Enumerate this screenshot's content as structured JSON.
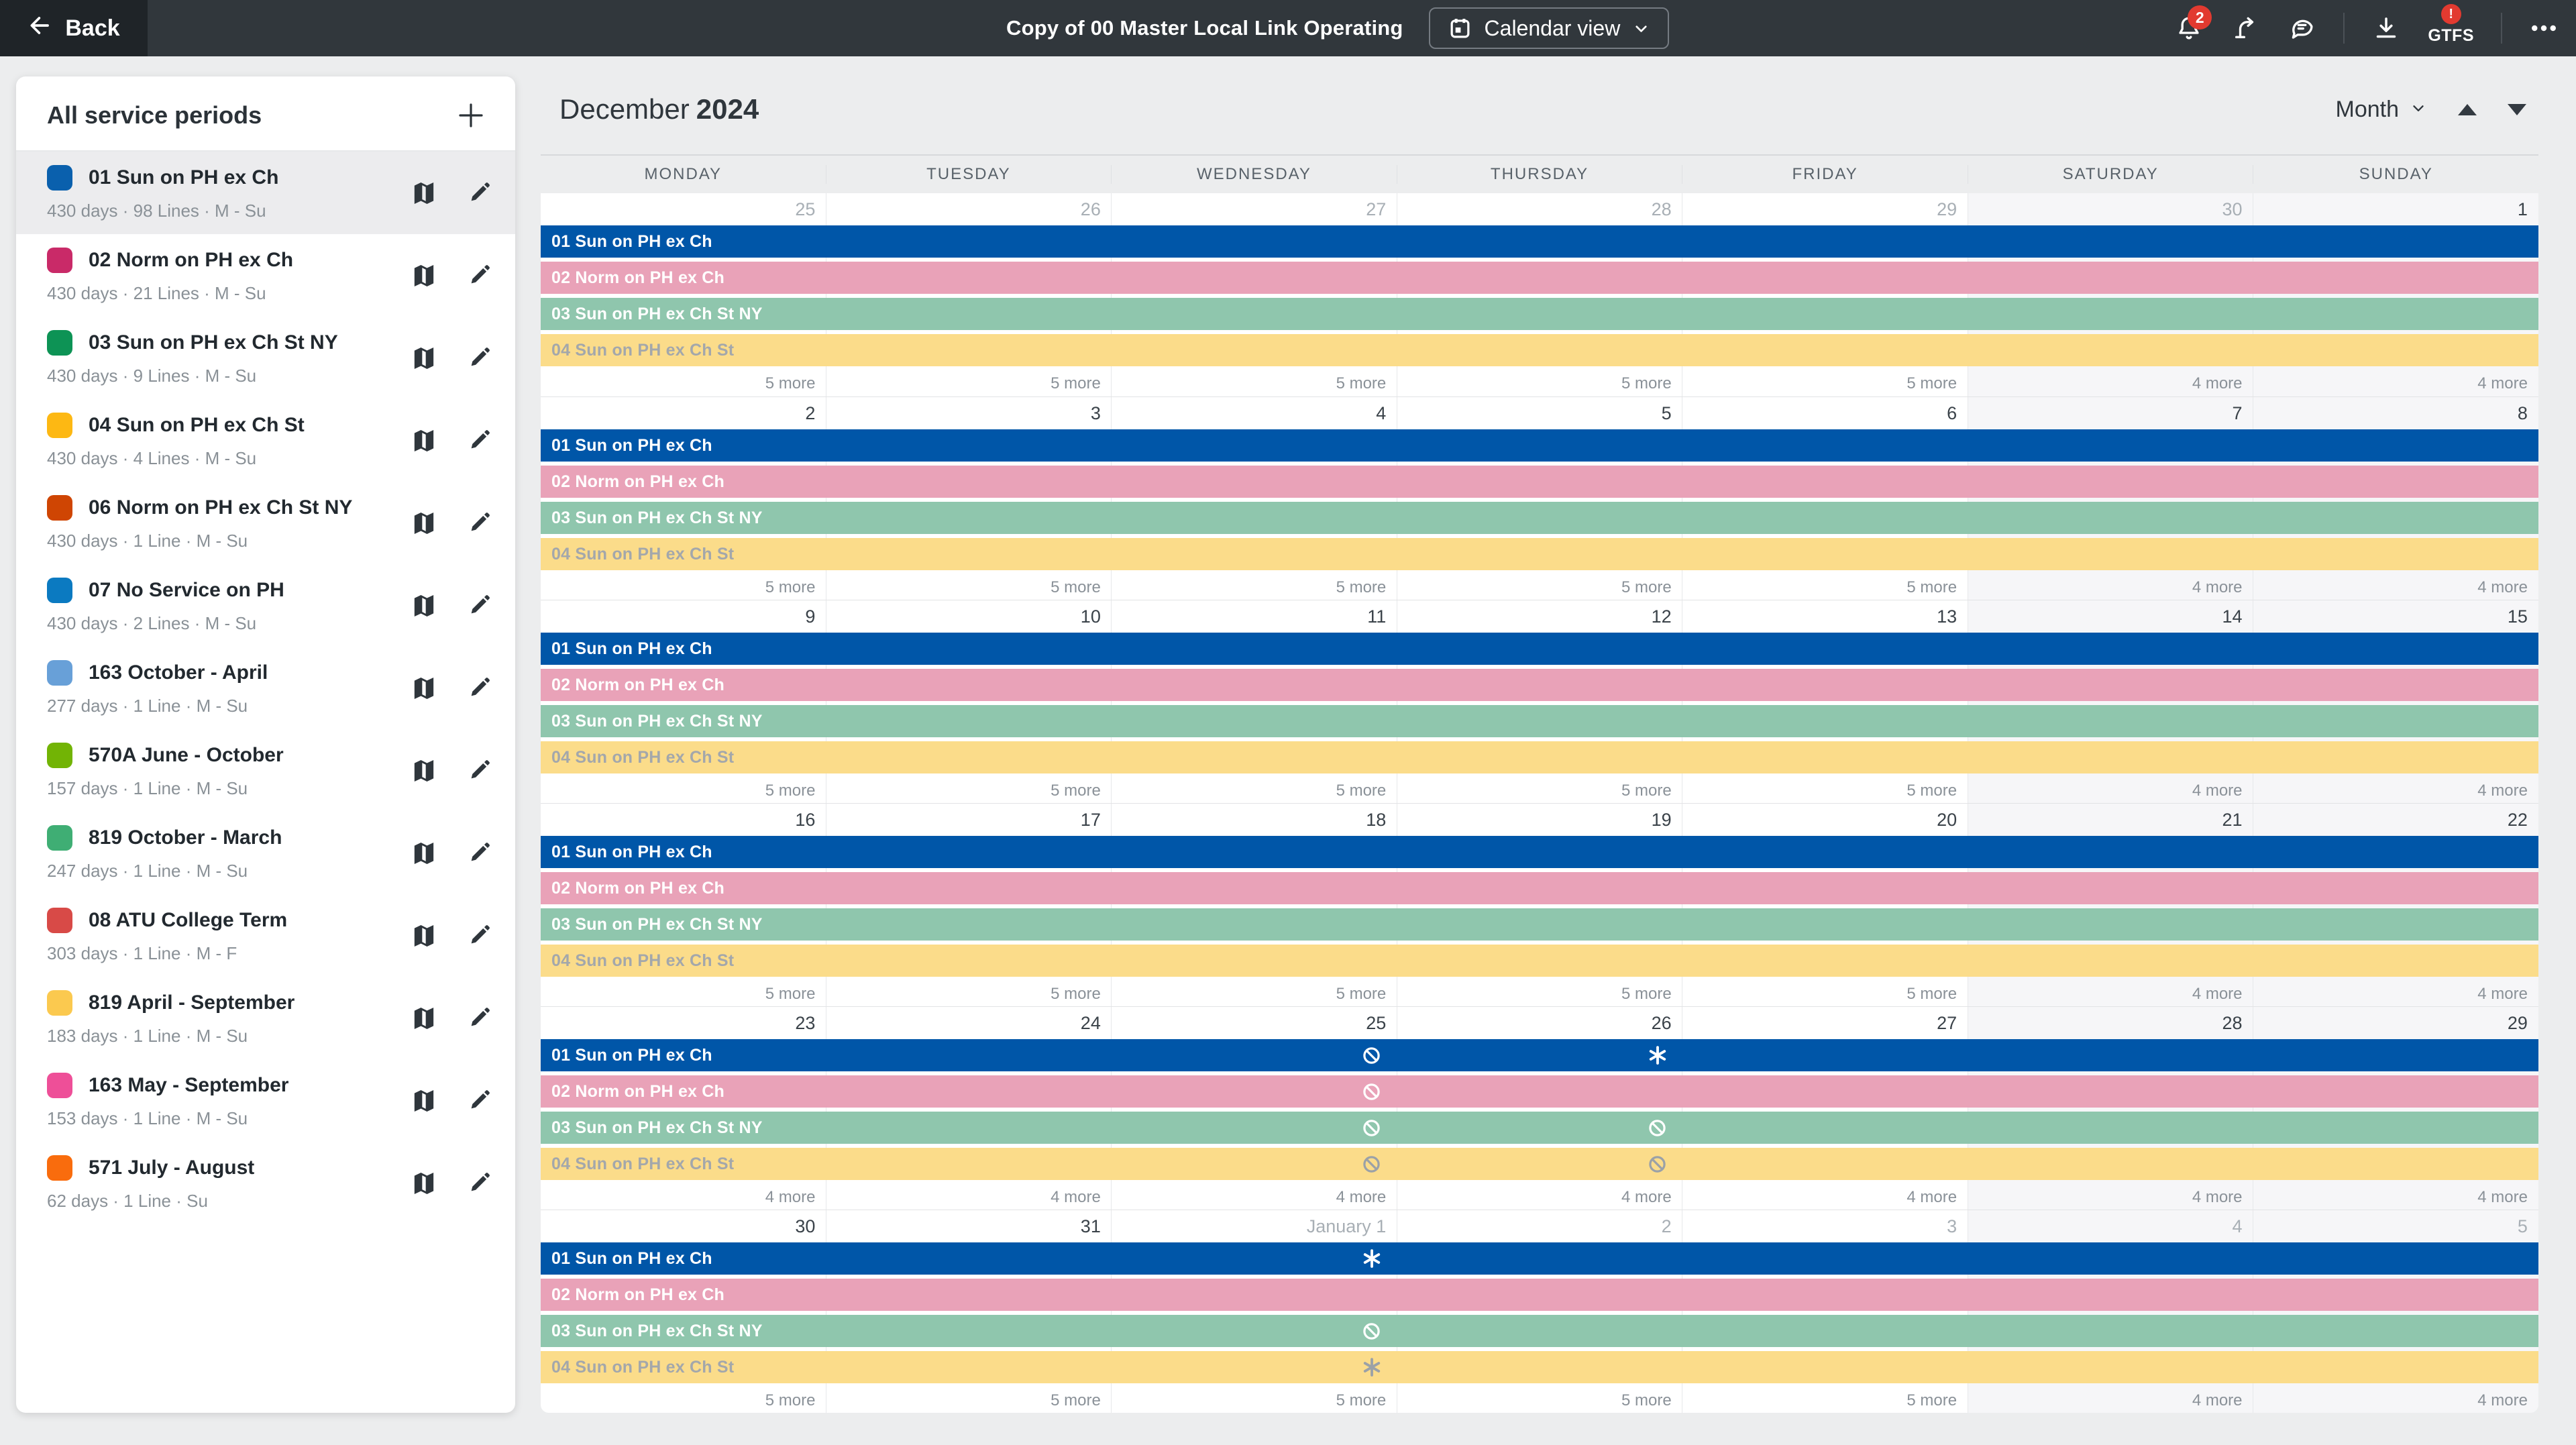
{
  "header": {
    "back_label": "Back",
    "title": "Copy of 00 Master Local Link Operating",
    "view_button_label": "Calendar view",
    "notification_count": "2",
    "gtfs_label": "GTFS",
    "gtfs_badge": "!"
  },
  "sidebar": {
    "title": "All service periods",
    "items": [
      {
        "name": "01 Sun on PH ex Ch",
        "details": "430 days · 98 Lines · M - Su",
        "color": "#0a60ad",
        "selected": true
      },
      {
        "name": "02 Norm on PH ex Ch",
        "details": "430 days · 21 Lines · M - Su",
        "color": "#c92a68",
        "selected": false
      },
      {
        "name": "03 Sun on PH ex Ch St NY",
        "details": "430 days · 9 Lines · M - Su",
        "color": "#0d9355",
        "selected": false
      },
      {
        "name": "04 Sun on PH ex Ch St",
        "details": "430 days · 4 Lines · M - Su",
        "color": "#fdb813",
        "selected": false
      },
      {
        "name": "06 Norm on PH ex Ch St NY",
        "details": "430 days · 1 Line · M - Su",
        "color": "#cf4503",
        "selected": false
      },
      {
        "name": "07 No Service on PH",
        "details": "430 days · 2 Lines · M - Su",
        "color": "#0b7ac1",
        "selected": false
      },
      {
        "name": "163 October - April",
        "details": "277 days · 1 Line · M - Su",
        "color": "#68a0d8",
        "selected": false
      },
      {
        "name": "570A June - October",
        "details": "157 days · 1 Line · M - Su",
        "color": "#72b405",
        "selected": false
      },
      {
        "name": "819 October - March",
        "details": "247 days · 1 Line · M - Su",
        "color": "#3fae74",
        "selected": false
      },
      {
        "name": "08 ATU College Term",
        "details": "303 days · 1 Line · M - F",
        "color": "#d84a47",
        "selected": false
      },
      {
        "name": "819 April - September",
        "details": "183 days · 1 Line · M - Su",
        "color": "#fbc94f",
        "selected": false
      },
      {
        "name": "163 May - September",
        "details": "153 days · 1 Line · M - Su",
        "color": "#ee4f98",
        "selected": false
      },
      {
        "name": "571 July - August",
        "details": "62 days · 1 Line · Su",
        "color": "#f96c0d",
        "selected": false
      }
    ]
  },
  "calendar": {
    "month_label": "December",
    "year_label": "2024",
    "granularity_label": "Month",
    "day_headers": [
      "MONDAY",
      "TUESDAY",
      "WEDNESDAY",
      "THURSDAY",
      "FRIDAY",
      "SATURDAY",
      "SUNDAY"
    ],
    "weekend_cols": [
      5,
      6
    ],
    "bars": [
      {
        "id": "01",
        "label": "01 Sun on PH ex Ch",
        "color": "#0056a8",
        "text_color": "#ffffff",
        "icon_color": "#ffffff"
      },
      {
        "id": "02",
        "label": "02 Norm on PH ex Ch",
        "color": "#e9a2b8",
        "text_color": "#ffffff",
        "icon_color": "#ffffff"
      },
      {
        "id": "03",
        "label": "03 Sun on PH ex Ch St NY",
        "color": "#8fc6ad",
        "text_color": "#ffffff",
        "icon_color": "#ffffff"
      },
      {
        "id": "04",
        "label": "04 Sun on PH ex Ch St",
        "color": "#fbdc8a",
        "text_color": "#a3a7ab",
        "icon_color": "#9ba1a7"
      }
    ],
    "weeks": [
      {
        "dates": [
          {
            "label": "25",
            "muted": true
          },
          {
            "label": "26",
            "muted": true
          },
          {
            "label": "27",
            "muted": true
          },
          {
            "label": "28",
            "muted": true
          },
          {
            "label": "29",
            "muted": true
          },
          {
            "label": "30",
            "muted": true
          },
          {
            "label": "1",
            "muted": false
          }
        ],
        "bar_icons": [
          [],
          [],
          [],
          []
        ],
        "more": [
          "5 more",
          "5 more",
          "5 more",
          "5 more",
          "5 more",
          "4 more",
          "4 more"
        ]
      },
      {
        "dates": [
          {
            "label": "2",
            "muted": false
          },
          {
            "label": "3",
            "muted": false
          },
          {
            "label": "4",
            "muted": false
          },
          {
            "label": "5",
            "muted": false
          },
          {
            "label": "6",
            "muted": false
          },
          {
            "label": "7",
            "muted": false
          },
          {
            "label": "8",
            "muted": false
          }
        ],
        "bar_icons": [
          [],
          [],
          [],
          []
        ],
        "more": [
          "5 more",
          "5 more",
          "5 more",
          "5 more",
          "5 more",
          "4 more",
          "4 more"
        ]
      },
      {
        "dates": [
          {
            "label": "9",
            "muted": false
          },
          {
            "label": "10",
            "muted": false
          },
          {
            "label": "11",
            "muted": false
          },
          {
            "label": "12",
            "muted": false
          },
          {
            "label": "13",
            "muted": false
          },
          {
            "label": "14",
            "muted": false
          },
          {
            "label": "15",
            "muted": false
          }
        ],
        "bar_icons": [
          [],
          [],
          [],
          []
        ],
        "more": [
          "5 more",
          "5 more",
          "5 more",
          "5 more",
          "5 more",
          "4 more",
          "4 more"
        ]
      },
      {
        "dates": [
          {
            "label": "16",
            "muted": false
          },
          {
            "label": "17",
            "muted": false
          },
          {
            "label": "18",
            "muted": false
          },
          {
            "label": "19",
            "muted": false
          },
          {
            "label": "20",
            "muted": false
          },
          {
            "label": "21",
            "muted": false
          },
          {
            "label": "22",
            "muted": false
          }
        ],
        "bar_icons": [
          [],
          [],
          [],
          []
        ],
        "more": [
          "5 more",
          "5 more",
          "5 more",
          "5 more",
          "5 more",
          "4 more",
          "4 more"
        ]
      },
      {
        "dates": [
          {
            "label": "23",
            "muted": false
          },
          {
            "label": "24",
            "muted": false
          },
          {
            "label": "25",
            "muted": false
          },
          {
            "label": "26",
            "muted": false
          },
          {
            "label": "27",
            "muted": false
          },
          {
            "label": "28",
            "muted": false
          },
          {
            "label": "29",
            "muted": false
          }
        ],
        "bar_icons": [
          [
            {
              "col": 2,
              "type": "ban"
            },
            {
              "col": 3,
              "type": "asterisk"
            }
          ],
          [
            {
              "col": 2,
              "type": "ban"
            }
          ],
          [
            {
              "col": 2,
              "type": "ban"
            },
            {
              "col": 3,
              "type": "ban"
            }
          ],
          [
            {
              "col": 2,
              "type": "ban"
            },
            {
              "col": 3,
              "type": "ban"
            }
          ]
        ],
        "more": [
          "4 more",
          "4 more",
          "4 more",
          "4 more",
          "4 more",
          "4 more",
          "4 more"
        ]
      },
      {
        "dates": [
          {
            "label": "30",
            "muted": false
          },
          {
            "label": "31",
            "muted": false
          },
          {
            "label": "January 1",
            "muted": true
          },
          {
            "label": "2",
            "muted": true
          },
          {
            "label": "3",
            "muted": true
          },
          {
            "label": "4",
            "muted": true
          },
          {
            "label": "5",
            "muted": true
          }
        ],
        "bar_icons": [
          [
            {
              "col": 2,
              "type": "asterisk"
            }
          ],
          [],
          [
            {
              "col": 2,
              "type": "ban"
            }
          ],
          [
            {
              "col": 2,
              "type": "asterisk"
            }
          ]
        ],
        "more": [
          "5 more",
          "5 more",
          "5 more",
          "5 more",
          "5 more",
          "4 more",
          "4 more"
        ]
      }
    ]
  }
}
